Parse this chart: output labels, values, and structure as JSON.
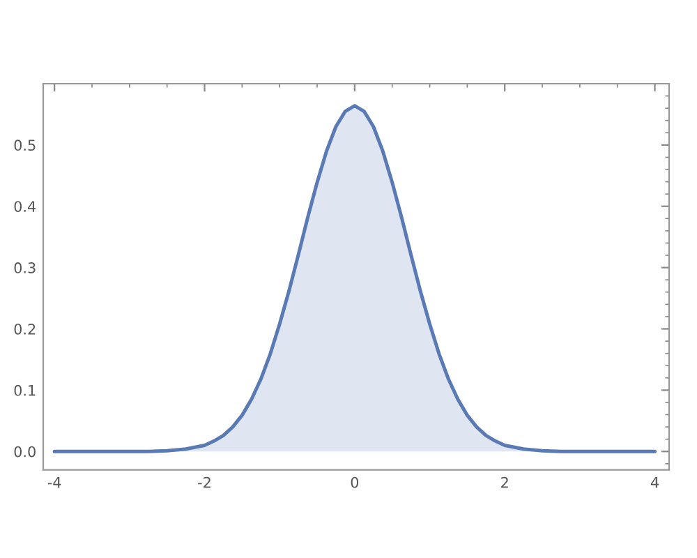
{
  "chart_data": {
    "type": "area",
    "x": [
      -4,
      -3.75,
      -3.5,
      -3.25,
      -3,
      -2.75,
      -2.5,
      -2.25,
      -2,
      -1.875,
      -1.75,
      -1.625,
      -1.5,
      -1.375,
      -1.25,
      -1.125,
      -1,
      -0.875,
      -0.75,
      -0.625,
      -0.5,
      -0.375,
      -0.25,
      -0.125,
      0,
      0.125,
      0.25,
      0.375,
      0.5,
      0.625,
      0.75,
      0.875,
      1,
      1.125,
      1.25,
      1.375,
      1.5,
      1.625,
      1.75,
      1.875,
      2,
      2.25,
      2.5,
      2.75,
      3,
      3.25,
      3.5,
      3.75,
      4
    ],
    "series": [
      {
        "color": "#5a7ab5",
        "values": [
          0,
          0,
          0,
          0,
          0,
          0,
          0.001,
          0.004,
          0.01,
          0.017,
          0.026,
          0.04,
          0.059,
          0.085,
          0.118,
          0.159,
          0.208,
          0.262,
          0.321,
          0.382,
          0.439,
          0.49,
          0.53,
          0.555,
          0.564,
          0.555,
          0.53,
          0.49,
          0.439,
          0.382,
          0.321,
          0.262,
          0.208,
          0.159,
          0.118,
          0.085,
          0.059,
          0.04,
          0.026,
          0.017,
          0.01,
          0.004,
          0.001,
          0,
          0,
          0,
          0,
          0,
          0
        ]
      }
    ],
    "xlim": [
      -4.15,
      4.19
    ],
    "ylim": [
      -0.03,
      0.6
    ],
    "xticks": [
      -4,
      -2,
      0,
      2,
      4
    ],
    "yticks": [
      {
        "value": 0,
        "label": "0.0"
      },
      0.1,
      0.2,
      0.3,
      0.4,
      0.5
    ],
    "grid": false,
    "legend": false
  }
}
